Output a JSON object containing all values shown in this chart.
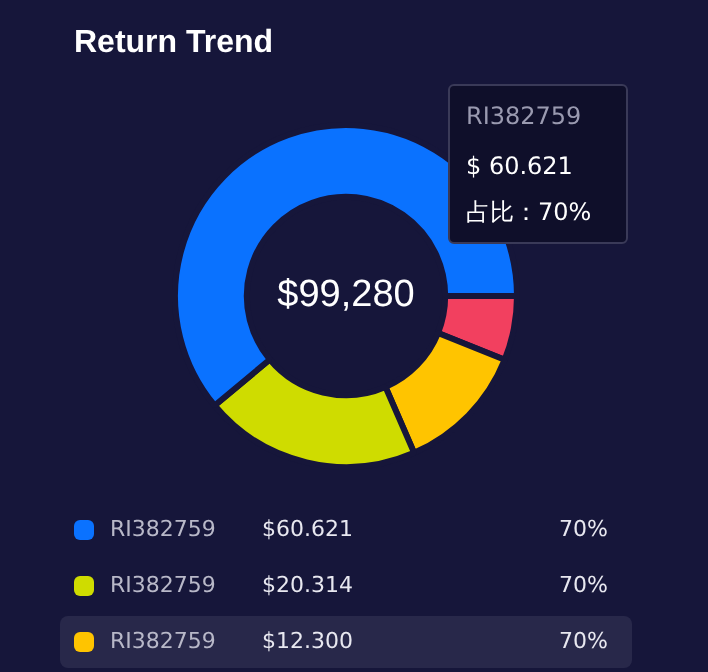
{
  "chart_data": {
    "type": "donut",
    "title": "Return Trend",
    "categories": [
      "RI382759",
      "RI382759",
      "RI382759",
      null
    ],
    "values": [
      60.621,
      20.314,
      12.3,
      6.045
    ],
    "colors": [
      "#0a72ff",
      "#cfdc00",
      "#ffc400",
      "#f2405f"
    ],
    "value_labels": [
      "$60.621",
      "$20.314",
      "$12.300",
      null
    ],
    "legend": "bottom",
    "annotations": [
      "$99,280",
      "RI382759",
      "$ 60.621",
      "占比：70%",
      "70%",
      "70%",
      "70%"
    ]
  }
}
